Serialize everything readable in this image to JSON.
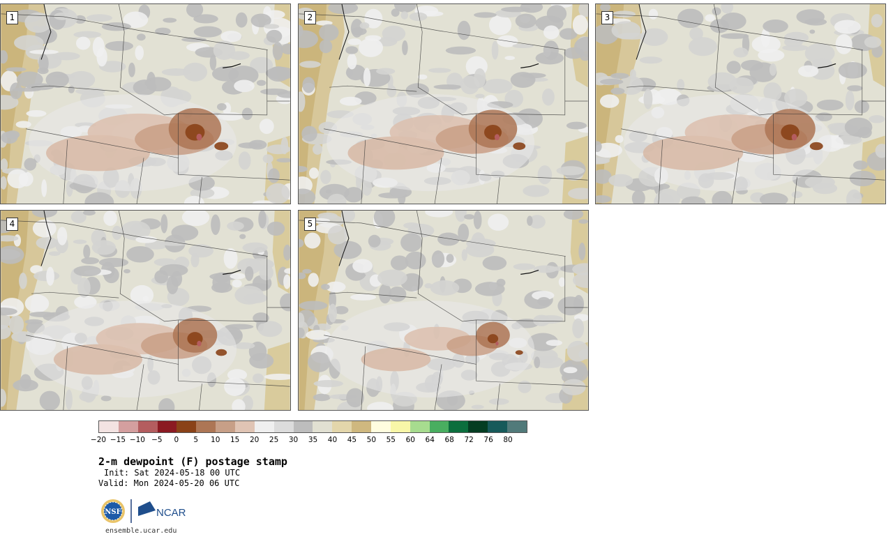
{
  "panels": [
    {
      "label": "1",
      "moisture": 1.0
    },
    {
      "label": "2",
      "moisture": 0.9
    },
    {
      "label": "3",
      "moisture": 0.95
    },
    {
      "label": "4",
      "moisture": 0.8
    },
    {
      "label": "5",
      "moisture": 0.55
    }
  ],
  "colorbar": {
    "colors": [
      "#f3e3e2",
      "#d49f9f",
      "#b45d5f",
      "#8b1a22",
      "#8a4218",
      "#ad7655",
      "#c79f87",
      "#e0c4b4",
      "#efefef",
      "#dcdcdc",
      "#bdbdbd",
      "#e1e0d2",
      "#e3d6ab",
      "#cfb87f",
      "#fffddf",
      "#f8f7a8",
      "#a7dc8f",
      "#49ae60",
      "#0b6e3d",
      "#043d22",
      "#175a5a",
      "#517a7a"
    ],
    "ticks": [
      "-20",
      "-15",
      "-10",
      "-5",
      "0",
      "5",
      "10",
      "15",
      "20",
      "25",
      "30",
      "35",
      "40",
      "45",
      "50",
      "55",
      "60",
      "64",
      "68",
      "72",
      "76",
      "80"
    ]
  },
  "title": "2-m dewpoint (F) postage stamp",
  "init": "Init: Sat 2024-05-18 00 UTC",
  "valid": "Valid: Mon 2024-05-20 06 UTC",
  "logos": {
    "nsf": "NSF",
    "ncar": "NCAR"
  },
  "site": "ensemble.ucar.edu"
}
